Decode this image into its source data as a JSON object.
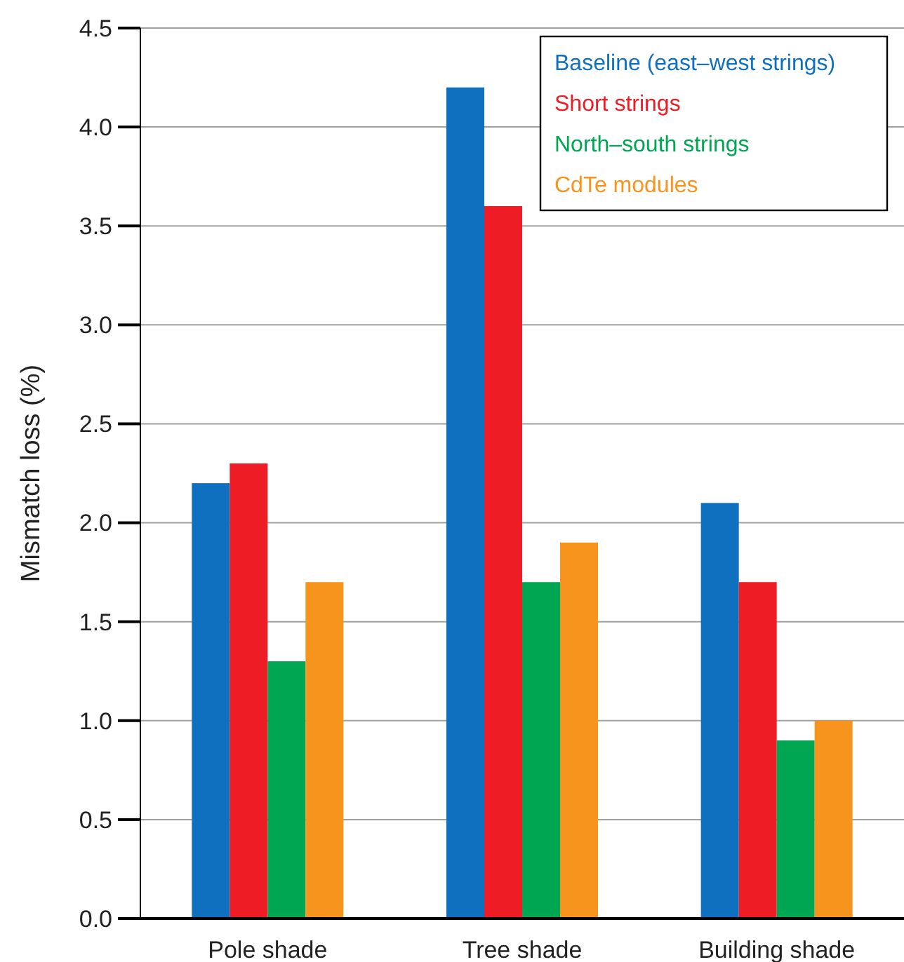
{
  "chart_data": {
    "type": "bar",
    "ylabel": "Mismatch loss (%)",
    "categories": [
      "Pole shade",
      "Tree shade",
      "Building shade"
    ],
    "series": [
      {
        "name": "Baseline (east–west strings)",
        "color": "#1070c0",
        "values": [
          2.2,
          4.2,
          2.1
        ]
      },
      {
        "name": "Short strings",
        "color": "#ee1c25",
        "values": [
          2.3,
          3.6,
          1.7
        ]
      },
      {
        "name": "North–south strings",
        "color": "#00a651",
        "values": [
          1.3,
          1.7,
          0.9
        ]
      },
      {
        "name": "CdTe modules",
        "color": "#f7941d",
        "values": [
          1.7,
          1.9,
          1.0
        ]
      }
    ],
    "ylim": [
      0,
      4.5
    ],
    "yticks": [
      {
        "value": 0,
        "label": "0.0"
      },
      0.5,
      {
        "value": 1,
        "label": "1.0"
      },
      1.5,
      {
        "value": 2,
        "label": "2.0"
      },
      2.5,
      {
        "value": 3,
        "label": "3.0"
      },
      3.5,
      {
        "value": 4,
        "label": "4.0"
      },
      4.5
    ],
    "grid": "y",
    "legend": "top right"
  }
}
